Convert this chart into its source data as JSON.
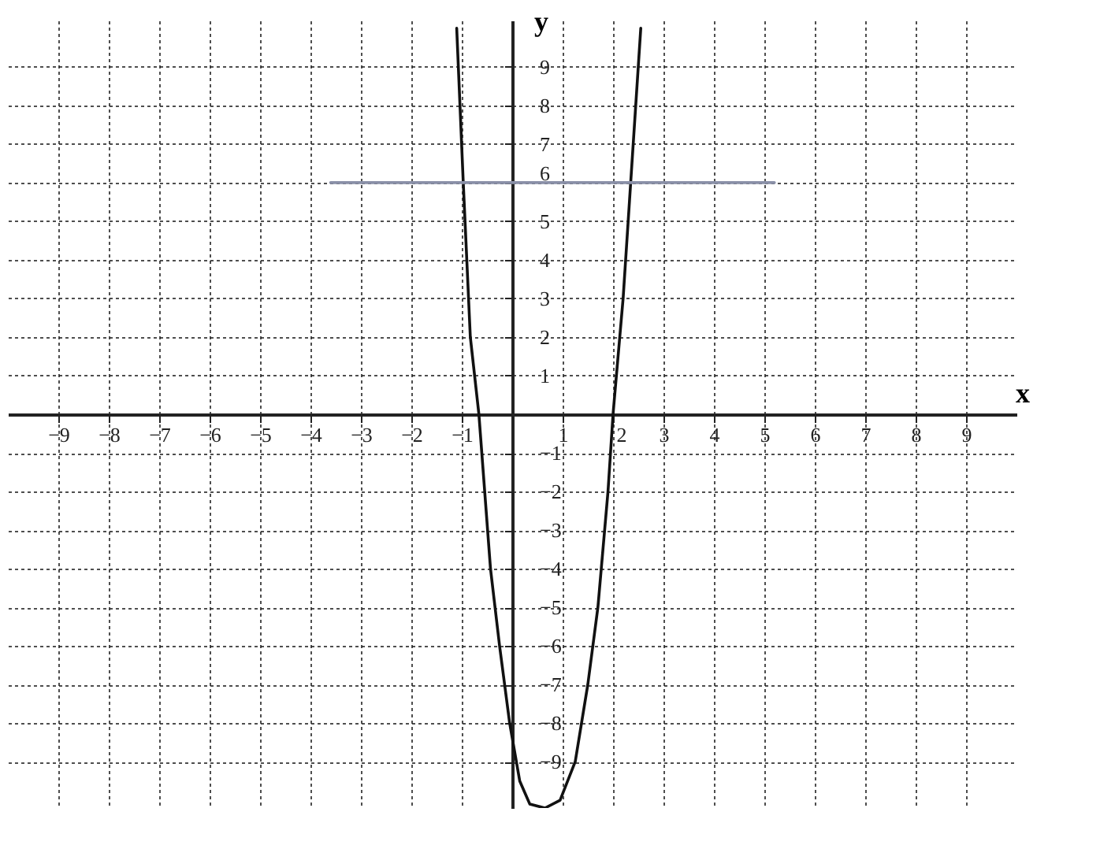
{
  "chart_data": {
    "type": "line",
    "xlabel": "x",
    "ylabel": "y",
    "xlim": [
      -10,
      10
    ],
    "ylim": [
      -10.2,
      10.2
    ],
    "xticks": [
      -9,
      -8,
      -7,
      -6,
      -5,
      -4,
      -3,
      -2,
      -1,
      1,
      2,
      3,
      4,
      5,
      6,
      7,
      8,
      9
    ],
    "yticks": [
      -9,
      -8,
      -7,
      -6,
      -5,
      -4,
      -3,
      -2,
      -1,
      1,
      2,
      3,
      4,
      5,
      6,
      7,
      8,
      9
    ],
    "grid": true,
    "marker": "none",
    "line_style": "solid",
    "series": [
      {
        "color": "#111111",
        "x": [
          -1.1,
          -0.97,
          -0.83,
          -0.66,
          -0.43,
          -0.25,
          -0.05,
          0.15,
          0.35,
          0.65,
          0.95,
          1.25,
          1.5,
          1.7,
          1.9,
          2.0,
          2.2,
          2.35,
          2.55
        ],
        "values": [
          10.0,
          6,
          2,
          0,
          -4,
          -6,
          -8,
          -9.5,
          -10.1,
          -10.2,
          -10.0,
          -9,
          -7,
          -5,
          -2,
          0,
          3,
          6,
          10
        ]
      },
      {
        "color": "#8a90a8",
        "x": [
          -3.6,
          5.2
        ],
        "values": [
          6,
          6
        ]
      }
    ]
  }
}
